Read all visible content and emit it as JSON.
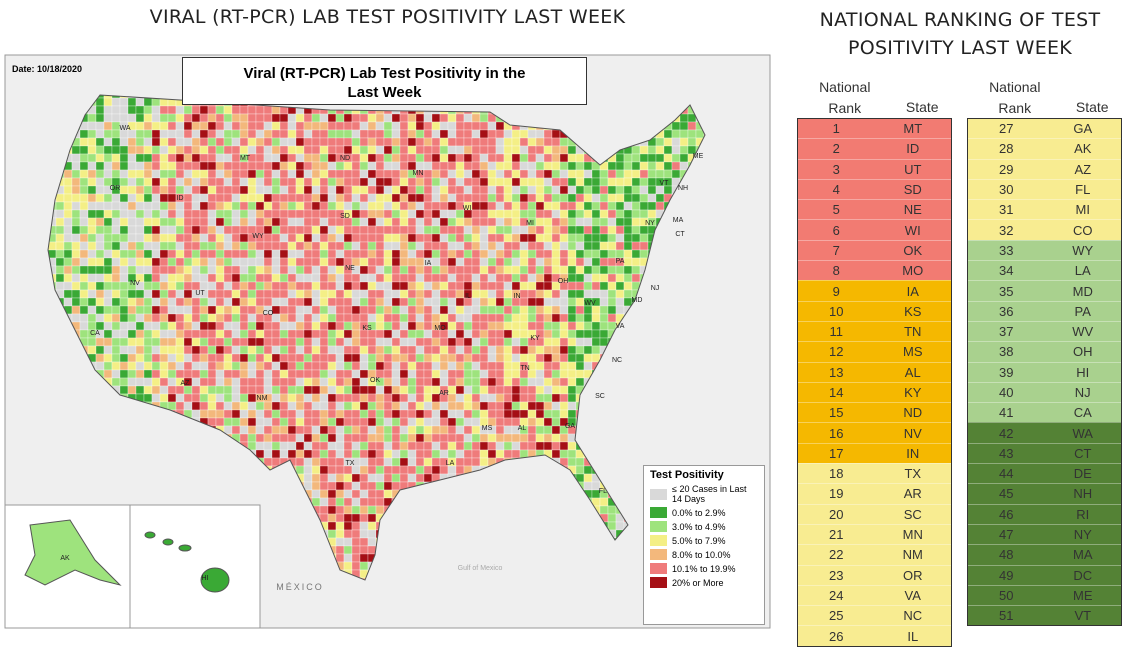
{
  "header": {
    "left_title": "VIRAL (RT-PCR) LAB TEST POSITIVITY LAST WEEK",
    "right_title": "NATIONAL RANKING OF TEST POSITIVITY LAST WEEK"
  },
  "map": {
    "title": "Viral (RT-PCR) Lab Test Positivity in the Last Week",
    "date": "Date: 10/18/2020",
    "state_labels": [
      "WA",
      "OR",
      "CA",
      "NV",
      "ID",
      "MT",
      "WY",
      "UT",
      "CO",
      "AZ",
      "NM",
      "ND",
      "SD",
      "NE",
      "KS",
      "OK",
      "TX",
      "MN",
      "IA",
      "MO",
      "AR",
      "LA",
      "WI",
      "IL",
      "MS",
      "MI",
      "IN",
      "OH",
      "KY",
      "TN",
      "AL",
      "GA",
      "FL",
      "SC",
      "NC",
      "VA",
      "WV",
      "PA",
      "NY",
      "VT",
      "NH",
      "ME",
      "MA",
      "CT",
      "NJ",
      "MD",
      "AK",
      "HI"
    ],
    "place_labels": [
      "MÉXICO",
      "Gulf of Mexico"
    ],
    "legend": {
      "title": "Test Positivity",
      "items": [
        {
          "label": "≤ 20 Cases in Last 14 Days",
          "color": "#d9d9d9"
        },
        {
          "label": "0.0% to 2.9%",
          "color": "#3aa935"
        },
        {
          "label": "3.0% to 4.9%",
          "color": "#9ee37d"
        },
        {
          "label": "5.0% to 7.9%",
          "color": "#f4ef86"
        },
        {
          "label": "8.0% to 10.0%",
          "color": "#f3b87c"
        },
        {
          "label": "10.1% to 19.9%",
          "color": "#ef7b7b"
        },
        {
          "label": "20% or More",
          "color": "#a50f15"
        }
      ]
    }
  },
  "ranking": {
    "headers": {
      "rank": "National Rank",
      "state": "State"
    },
    "rows": [
      {
        "rank": 1,
        "state": "MT",
        "color": "#f27b72"
      },
      {
        "rank": 2,
        "state": "ID",
        "color": "#f27b72"
      },
      {
        "rank": 3,
        "state": "UT",
        "color": "#f27b72"
      },
      {
        "rank": 4,
        "state": "SD",
        "color": "#f27b72"
      },
      {
        "rank": 5,
        "state": "NE",
        "color": "#f27b72"
      },
      {
        "rank": 6,
        "state": "WI",
        "color": "#f27b72"
      },
      {
        "rank": 7,
        "state": "OK",
        "color": "#f27b72"
      },
      {
        "rank": 8,
        "state": "MO",
        "color": "#f27b72"
      },
      {
        "rank": 9,
        "state": "IA",
        "color": "#f5b800"
      },
      {
        "rank": 10,
        "state": "KS",
        "color": "#f5b800"
      },
      {
        "rank": 11,
        "state": "TN",
        "color": "#f5b800"
      },
      {
        "rank": 12,
        "state": "MS",
        "color": "#f5b800"
      },
      {
        "rank": 13,
        "state": "AL",
        "color": "#f5b800"
      },
      {
        "rank": 14,
        "state": "KY",
        "color": "#f5b800"
      },
      {
        "rank": 15,
        "state": "ND",
        "color": "#f5b800"
      },
      {
        "rank": 16,
        "state": "NV",
        "color": "#f5b800"
      },
      {
        "rank": 17,
        "state": "IN",
        "color": "#f5b800"
      },
      {
        "rank": 18,
        "state": "TX",
        "color": "#f8ec91"
      },
      {
        "rank": 19,
        "state": "AR",
        "color": "#f8ec91"
      },
      {
        "rank": 20,
        "state": "SC",
        "color": "#f8ec91"
      },
      {
        "rank": 21,
        "state": "MN",
        "color": "#f8ec91"
      },
      {
        "rank": 22,
        "state": "NM",
        "color": "#f8ec91"
      },
      {
        "rank": 23,
        "state": "OR",
        "color": "#f8ec91"
      },
      {
        "rank": 24,
        "state": "VA",
        "color": "#f8ec91"
      },
      {
        "rank": 25,
        "state": "NC",
        "color": "#f8ec91"
      },
      {
        "rank": 26,
        "state": "IL",
        "color": "#f8ec91"
      },
      {
        "rank": 27,
        "state": "GA",
        "color": "#f8ec91"
      },
      {
        "rank": 28,
        "state": "AK",
        "color": "#f8ec91"
      },
      {
        "rank": 29,
        "state": "AZ",
        "color": "#f8ec91"
      },
      {
        "rank": 30,
        "state": "FL",
        "color": "#f8ec91"
      },
      {
        "rank": 31,
        "state": "MI",
        "color": "#f8ec91"
      },
      {
        "rank": 32,
        "state": "CO",
        "color": "#f8ec91"
      },
      {
        "rank": 33,
        "state": "WY",
        "color": "#a9d18e"
      },
      {
        "rank": 34,
        "state": "LA",
        "color": "#a9d18e"
      },
      {
        "rank": 35,
        "state": "MD",
        "color": "#a9d18e"
      },
      {
        "rank": 36,
        "state": "PA",
        "color": "#a9d18e"
      },
      {
        "rank": 37,
        "state": "WV",
        "color": "#a9d18e"
      },
      {
        "rank": 38,
        "state": "OH",
        "color": "#a9d18e"
      },
      {
        "rank": 39,
        "state": "HI",
        "color": "#a9d18e"
      },
      {
        "rank": 40,
        "state": "NJ",
        "color": "#a9d18e"
      },
      {
        "rank": 41,
        "state": "CA",
        "color": "#a9d18e"
      },
      {
        "rank": 42,
        "state": "WA",
        "color": "#548235"
      },
      {
        "rank": 43,
        "state": "CT",
        "color": "#548235"
      },
      {
        "rank": 44,
        "state": "DE",
        "color": "#548235"
      },
      {
        "rank": 45,
        "state": "NH",
        "color": "#548235"
      },
      {
        "rank": 46,
        "state": "RI",
        "color": "#548235"
      },
      {
        "rank": 47,
        "state": "NY",
        "color": "#548235"
      },
      {
        "rank": 48,
        "state": "MA",
        "color": "#548235"
      },
      {
        "rank": 49,
        "state": "DC",
        "color": "#548235"
      },
      {
        "rank": 50,
        "state": "ME",
        "color": "#548235"
      },
      {
        "rank": 51,
        "state": "VT",
        "color": "#548235"
      }
    ]
  }
}
